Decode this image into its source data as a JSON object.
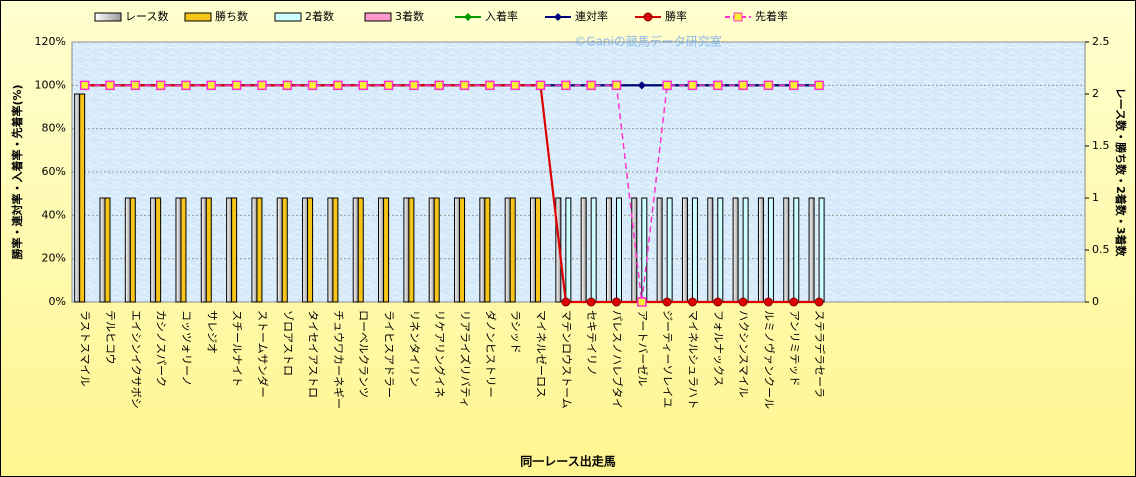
{
  "chart_data": {
    "type": "combo",
    "watermark": "©Ganiの競馬データ研究室",
    "xlabel": "同一レース出走馬",
    "ylabel": "勝率・連対率・入着率・先着率(%)",
    "y2label": "レース数・勝ち数・2着数・3着数",
    "legend": "top",
    "grid": true,
    "categories": [
      "ラストスマイル",
      "テルヒコウ",
      "エイシンイクサボシ",
      "カシノスパーク",
      "コッツォリーノ",
      "サレジオ",
      "スチールナイト",
      "ストームサンダー",
      "ゾロアストロ",
      "タイセイアストロ",
      "チュウワカーネギー",
      "ローベルクランツ",
      "ライヒスアドラー",
      "リネンタイリン",
      "リケアリングイネ",
      "リアライズリバティ",
      "ダノンヒストリー",
      "ラシッド",
      "マイネルゼーロス",
      "マテンロウストーム",
      "セキテイリノ",
      "パレスノハレブタイ",
      "アートバーゼル",
      "ジーティーソレイユ",
      "マイネルシュラハト",
      "フォルナックス",
      "ハクシンスマイル",
      "ルミノヴァンクール",
      "アンリミテッド",
      "ステラデラセーラ",
      null,
      null,
      null,
      null,
      null,
      null,
      null,
      null,
      null,
      null
    ],
    "ylim": [
      0,
      120
    ],
    "yticks": [
      {
        "value": 0,
        "label": "0%"
      },
      {
        "value": 20,
        "label": "20%"
      },
      {
        "value": 40,
        "label": "40%"
      },
      {
        "value": 60,
        "label": "60%"
      },
      {
        "value": 80,
        "label": "80%"
      },
      {
        "value": 100,
        "label": "100%"
      },
      {
        "value": 120,
        "label": "120%"
      }
    ],
    "y2lim": [
      0,
      2.5
    ],
    "y2ticks": [
      0,
      0.5,
      1,
      1.5,
      2,
      2.5
    ],
    "series": [
      {
        "name": "レース数",
        "type": "bar",
        "axis": "y2",
        "color": "#d8d8d8",
        "values": [
          2,
          1,
          1,
          1,
          1,
          1,
          1,
          1,
          1,
          1,
          1,
          1,
          1,
          1,
          1,
          1,
          1,
          1,
          1,
          1,
          1,
          1,
          1,
          1,
          1,
          1,
          1,
          1,
          1,
          1,
          null,
          null,
          null,
          null,
          null,
          null,
          null,
          null,
          null,
          null
        ]
      },
      {
        "name": "勝ち数",
        "type": "bar",
        "axis": "y2",
        "color": "#f5c518",
        "values": [
          2,
          1,
          1,
          1,
          1,
          1,
          1,
          1,
          1,
          1,
          1,
          1,
          1,
          1,
          1,
          1,
          1,
          1,
          1,
          0,
          0,
          0,
          0,
          0,
          0,
          0,
          0,
          0,
          0,
          0,
          null,
          null,
          null,
          null,
          null,
          null,
          null,
          null,
          null,
          null
        ]
      },
      {
        "name": "2着数",
        "type": "bar",
        "axis": "y2",
        "color": "#ccffff",
        "values": [
          0,
          0,
          0,
          0,
          0,
          0,
          0,
          0,
          0,
          0,
          0,
          0,
          0,
          0,
          0,
          0,
          0,
          0,
          0,
          1,
          1,
          1,
          1,
          1,
          1,
          1,
          1,
          1,
          1,
          1,
          null,
          null,
          null,
          null,
          null,
          null,
          null,
          null,
          null,
          null
        ]
      },
      {
        "name": "3着数",
        "type": "bar",
        "axis": "y2",
        "color": "#ff99cc",
        "values": [
          0,
          0,
          0,
          0,
          0,
          0,
          0,
          0,
          0,
          0,
          0,
          0,
          0,
          0,
          0,
          0,
          0,
          0,
          0,
          0,
          0,
          0,
          0,
          0,
          0,
          0,
          0,
          0,
          0,
          0,
          null,
          null,
          null,
          null,
          null,
          null,
          null,
          null,
          null,
          null
        ]
      },
      {
        "name": "入着率",
        "type": "line",
        "color": "#009900",
        "marker": "diamond",
        "values": [
          100,
          100,
          100,
          100,
          100,
          100,
          100,
          100,
          100,
          100,
          100,
          100,
          100,
          100,
          100,
          100,
          100,
          100,
          100,
          100,
          100,
          100,
          100,
          100,
          100,
          100,
          100,
          100,
          100,
          100,
          null,
          null,
          null,
          null,
          null,
          null,
          null,
          null,
          null,
          null
        ]
      },
      {
        "name": "連対率",
        "type": "line",
        "color": "#000080",
        "marker": "diamond",
        "values": [
          100,
          100,
          100,
          100,
          100,
          100,
          100,
          100,
          100,
          100,
          100,
          100,
          100,
          100,
          100,
          100,
          100,
          100,
          100,
          100,
          100,
          100,
          100,
          100,
          100,
          100,
          100,
          100,
          100,
          100,
          null,
          null,
          null,
          null,
          null,
          null,
          null,
          null,
          null,
          null
        ]
      },
      {
        "name": "勝率",
        "type": "line",
        "color": "#dd0000",
        "marker": "circle",
        "values": [
          100,
          100,
          100,
          100,
          100,
          100,
          100,
          100,
          100,
          100,
          100,
          100,
          100,
          100,
          100,
          100,
          100,
          100,
          100,
          0,
          0,
          0,
          0,
          0,
          0,
          0,
          0,
          0,
          0,
          0,
          null,
          null,
          null,
          null,
          null,
          null,
          null,
          null,
          null,
          null
        ]
      },
      {
        "name": "先着率",
        "type": "line",
        "color": "#ff33cc",
        "marker": "square",
        "dashed": true,
        "values": [
          100,
          100,
          100,
          100,
          100,
          100,
          100,
          100,
          100,
          100,
          100,
          100,
          100,
          100,
          100,
          100,
          100,
          100,
          100,
          100,
          100,
          100,
          0,
          100,
          100,
          100,
          100,
          100,
          100,
          100,
          null,
          null,
          null,
          null,
          null,
          null,
          null,
          null,
          null,
          null
        ]
      }
    ]
  }
}
